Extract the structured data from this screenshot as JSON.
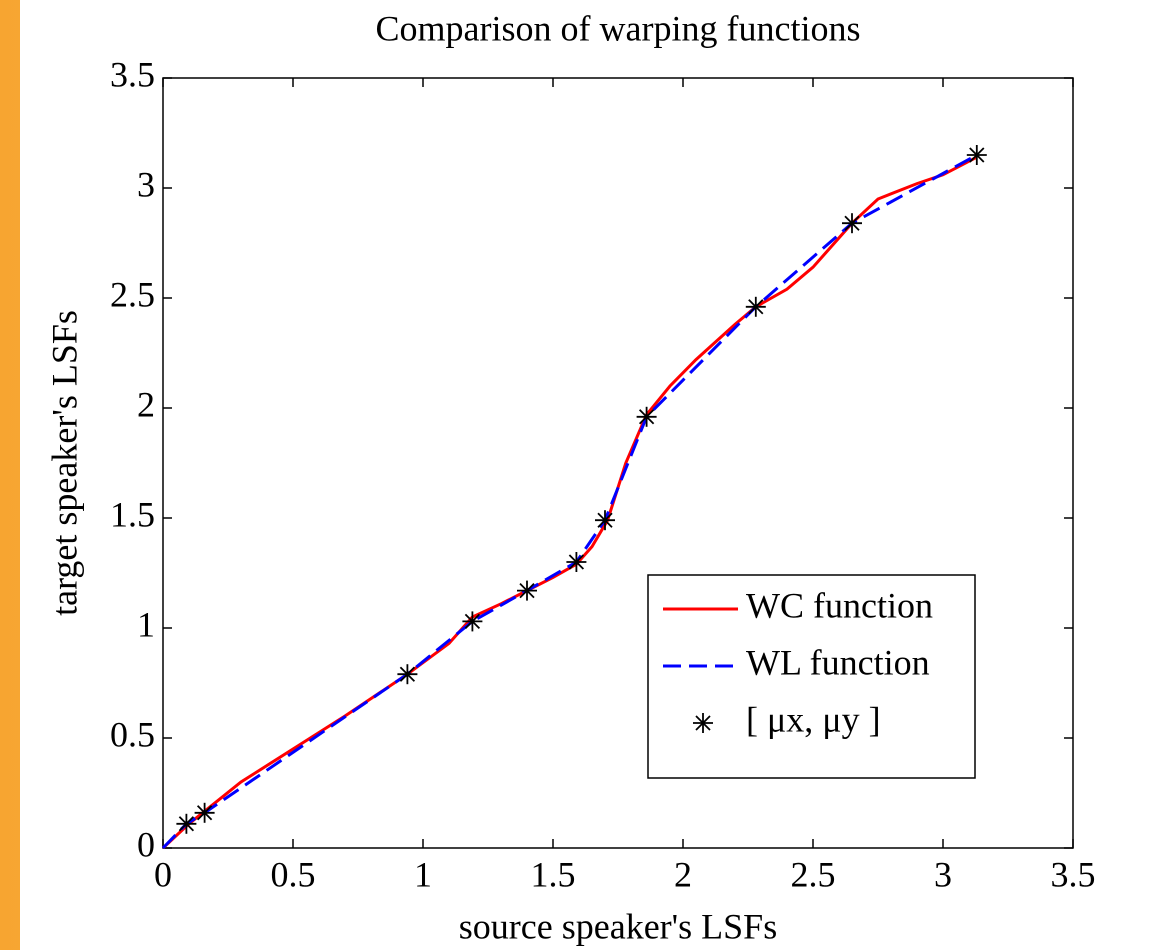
{
  "chart_data": {
    "type": "line",
    "title": "Comparison of warping functions",
    "x_label": "source speaker's LSFs",
    "y_label": "target speaker's LSFs",
    "xlim": [
      0,
      3.5
    ],
    "ylim": [
      0,
      3.5
    ],
    "xticks": [
      0,
      0.5,
      1,
      1.5,
      2,
      2.5,
      3,
      3.5
    ],
    "yticks": [
      0,
      0.5,
      1,
      1.5,
      2,
      2.5,
      3,
      3.5
    ],
    "legend": "lower right",
    "series": [
      {
        "name": "WC function",
        "color": "#ff0000",
        "style": "solid",
        "x": [
          0,
          0.1,
          0.3,
          0.5,
          0.7,
          0.94,
          1.1,
          1.19,
          1.3,
          1.4,
          1.5,
          1.59,
          1.65,
          1.71,
          1.78,
          1.86,
          1.95,
          2.05,
          2.2,
          2.28,
          2.4,
          2.5,
          2.65,
          2.75,
          2.9,
          3.0,
          3.13
        ],
        "values": [
          0,
          0.11,
          0.3,
          0.45,
          0.6,
          0.79,
          0.93,
          1.05,
          1.11,
          1.17,
          1.23,
          1.29,
          1.37,
          1.49,
          1.75,
          1.97,
          2.1,
          2.22,
          2.38,
          2.46,
          2.54,
          2.64,
          2.84,
          2.95,
          3.02,
          3.06,
          3.14
        ]
      },
      {
        "name": "WL function",
        "color": "#0000ff",
        "style": "dashed",
        "x": [
          0,
          0.09,
          0.16,
          0.94,
          1.19,
          1.4,
          1.59,
          1.7,
          1.86,
          2.28,
          2.65,
          3.13
        ],
        "values": [
          0,
          0.11,
          0.16,
          0.79,
          1.03,
          1.17,
          1.3,
          1.49,
          1.96,
          2.46,
          2.84,
          3.15
        ]
      },
      {
        "name": "[ μx, μy ]",
        "color": "#000000",
        "style": "star",
        "x": [
          0.09,
          0.16,
          0.94,
          1.19,
          1.4,
          1.59,
          1.7,
          1.86,
          2.28,
          2.65,
          3.13
        ],
        "values": [
          0.11,
          0.16,
          0.79,
          1.03,
          1.17,
          1.3,
          1.49,
          1.96,
          2.46,
          2.84,
          3.15
        ]
      }
    ]
  }
}
